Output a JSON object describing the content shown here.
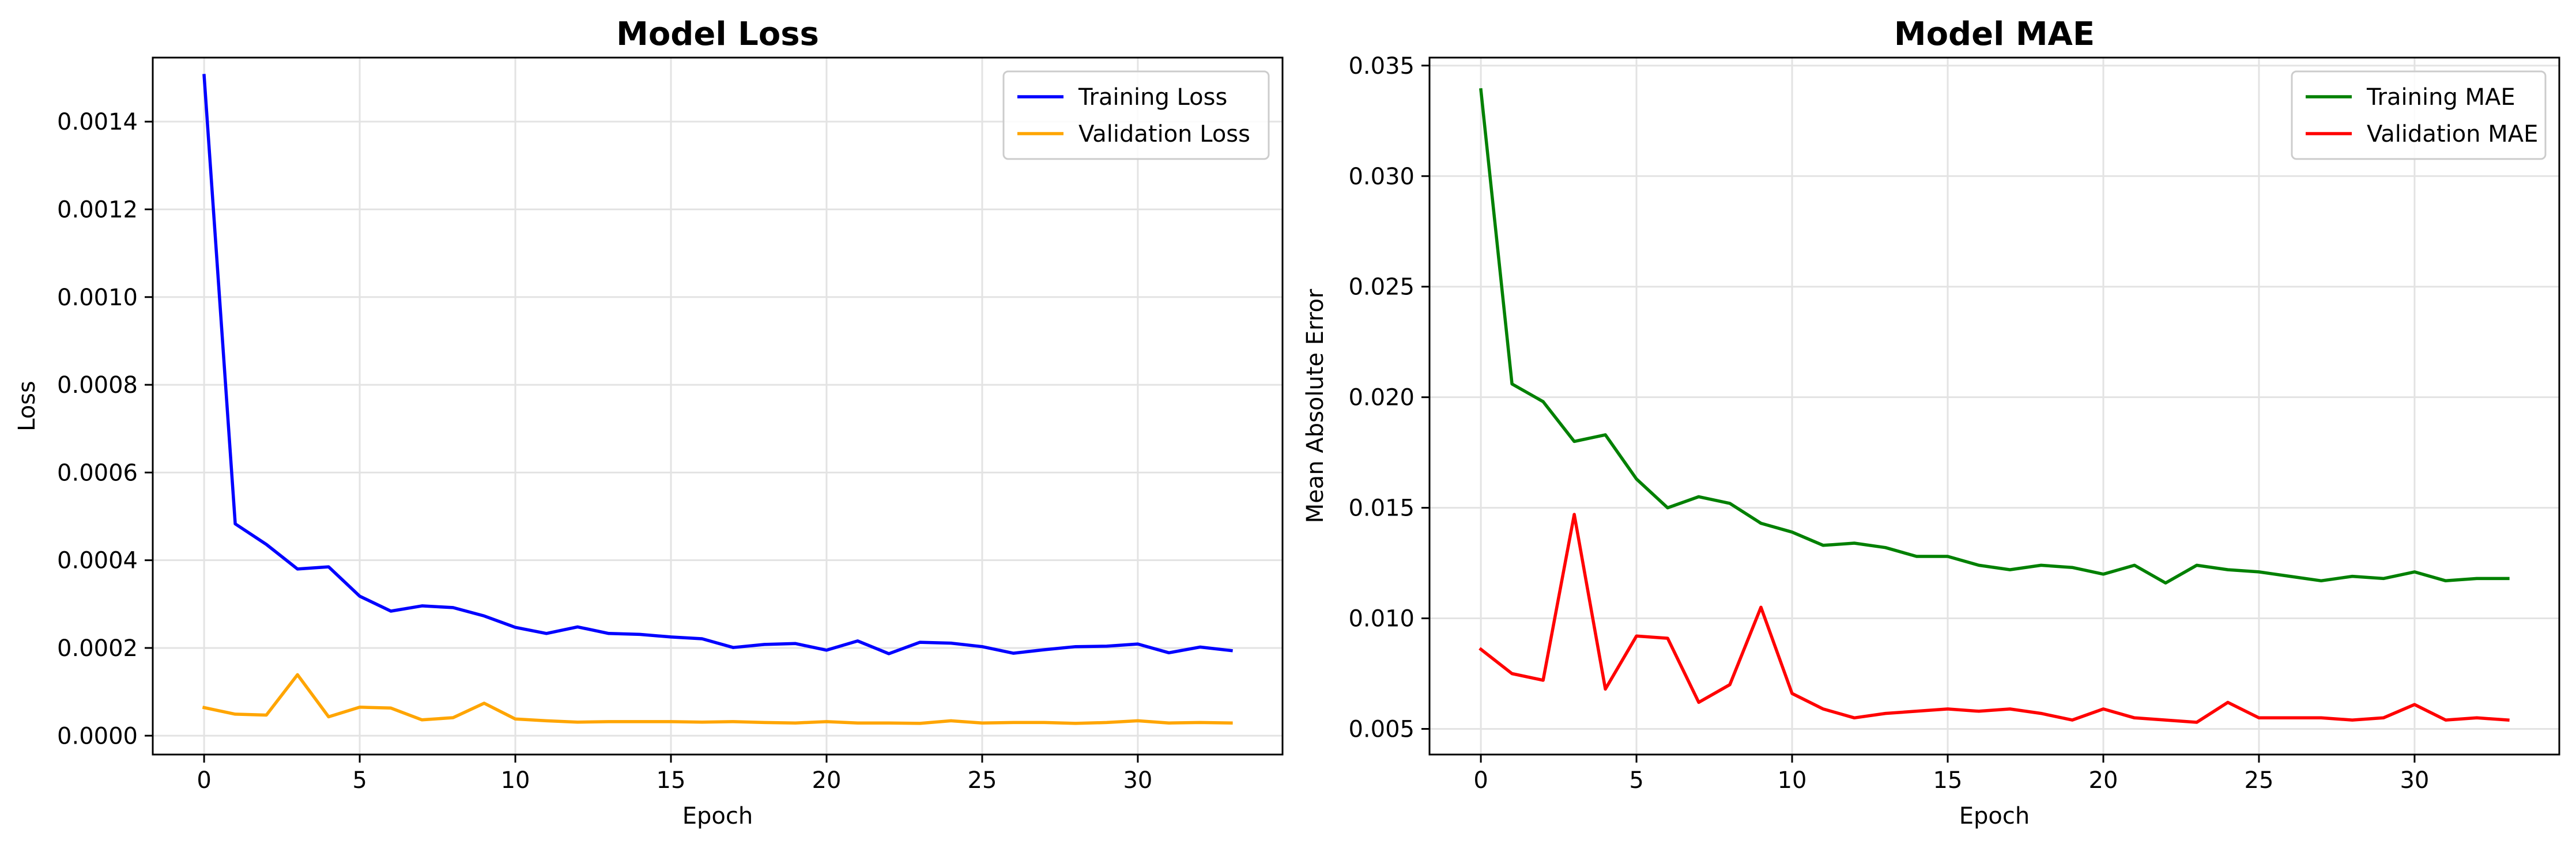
{
  "chart_data": [
    {
      "type": "line",
      "title": "Model Loss",
      "xlabel": "Epoch",
      "ylabel": "Loss",
      "xlim": [
        -1.65,
        34.65
      ],
      "ylim": [
        -4.3e-05,
        0.001546
      ],
      "xticks": [
        0,
        5,
        10,
        15,
        20,
        25,
        30
      ],
      "xtick_labels": [
        "0",
        "5",
        "10",
        "15",
        "20",
        "25",
        "30"
      ],
      "yticks": [
        0.0,
        0.0002,
        0.0004,
        0.0006,
        0.0008,
        0.001,
        0.0012,
        0.0014
      ],
      "ytick_labels": [
        "0.0000",
        "0.0002",
        "0.0004",
        "0.0006",
        "0.0008",
        "0.0010",
        "0.0012",
        "0.0014"
      ],
      "grid": true,
      "legend_position": "top-right",
      "x": [
        0,
        1,
        2,
        3,
        4,
        5,
        6,
        7,
        8,
        9,
        10,
        11,
        12,
        13,
        14,
        15,
        16,
        17,
        18,
        19,
        20,
        21,
        22,
        23,
        24,
        25,
        26,
        27,
        28,
        29,
        30,
        31,
        32,
        33
      ],
      "series": [
        {
          "name": "Training Loss",
          "color": "#0000ff",
          "values": [
            0.001505,
            0.000483,
            0.000436,
            0.00038,
            0.000385,
            0.000318,
            0.000284,
            0.000296,
            0.000292,
            0.000273,
            0.000247,
            0.000233,
            0.000248,
            0.000233,
            0.000231,
            0.000225,
            0.000221,
            0.000201,
            0.000208,
            0.00021,
            0.000195,
            0.000216,
            0.000187,
            0.000213,
            0.000211,
            0.000203,
            0.000188,
            0.000196,
            0.000203,
            0.000204,
            0.000209,
            0.000189,
            0.000202,
            0.000194
          ]
        },
        {
          "name": "Validation Loss",
          "color": "#ffa500",
          "values": [
            6.4e-05,
            4.9e-05,
            4.7e-05,
            0.000139,
            4.3e-05,
            6.5e-05,
            6.3e-05,
            3.6e-05,
            4.1e-05,
            7.4e-05,
            3.8e-05,
            3.4e-05,
            3.1e-05,
            3.2e-05,
            3.2e-05,
            3.2e-05,
            3.1e-05,
            3.2e-05,
            3e-05,
            2.9e-05,
            3.2e-05,
            2.9e-05,
            2.9e-05,
            2.8e-05,
            3.4e-05,
            2.9e-05,
            3e-05,
            3e-05,
            2.8e-05,
            3e-05,
            3.4e-05,
            2.9e-05,
            3e-05,
            2.9e-05
          ]
        }
      ]
    },
    {
      "type": "line",
      "title": "Model MAE",
      "xlabel": "Epoch",
      "ylabel": "Mean Absolute Error",
      "xlim": [
        -1.65,
        34.65
      ],
      "ylim": [
        0.00384,
        0.03536
      ],
      "xticks": [
        0,
        5,
        10,
        15,
        20,
        25,
        30
      ],
      "xtick_labels": [
        "0",
        "5",
        "10",
        "15",
        "20",
        "25",
        "30"
      ],
      "yticks": [
        0.005,
        0.01,
        0.015,
        0.02,
        0.025,
        0.03,
        0.035
      ],
      "ytick_labels": [
        "0.005",
        "0.010",
        "0.015",
        "0.020",
        "0.025",
        "0.030",
        "0.035"
      ],
      "grid": true,
      "legend_position": "top-right",
      "x": [
        0,
        1,
        2,
        3,
        4,
        5,
        6,
        7,
        8,
        9,
        10,
        11,
        12,
        13,
        14,
        15,
        16,
        17,
        18,
        19,
        20,
        21,
        22,
        23,
        24,
        25,
        26,
        27,
        28,
        29,
        30,
        31,
        32,
        33
      ],
      "series": [
        {
          "name": "Training MAE",
          "color": "#008000",
          "values": [
            0.0339,
            0.0206,
            0.0198,
            0.018,
            0.0183,
            0.0163,
            0.015,
            0.0155,
            0.0152,
            0.0143,
            0.0139,
            0.0133,
            0.0134,
            0.0132,
            0.0128,
            0.0128,
            0.0124,
            0.0122,
            0.0124,
            0.0123,
            0.012,
            0.0124,
            0.0116,
            0.0124,
            0.0122,
            0.0121,
            0.0119,
            0.0117,
            0.0119,
            0.0118,
            0.0121,
            0.0117,
            0.0118,
            0.0118
          ]
        },
        {
          "name": "Validation MAE",
          "color": "#ff0000",
          "values": [
            0.0086,
            0.0075,
            0.0072,
            0.0147,
            0.0068,
            0.0092,
            0.0091,
            0.0062,
            0.007,
            0.0105,
            0.0066,
            0.0059,
            0.0055,
            0.0057,
            0.0058,
            0.0059,
            0.0058,
            0.0059,
            0.0057,
            0.0054,
            0.0059,
            0.0055,
            0.0054,
            0.0053,
            0.0062,
            0.0055,
            0.0055,
            0.0055,
            0.0054,
            0.0055,
            0.0061,
            0.0054,
            0.0055,
            0.0054
          ]
        }
      ]
    }
  ]
}
